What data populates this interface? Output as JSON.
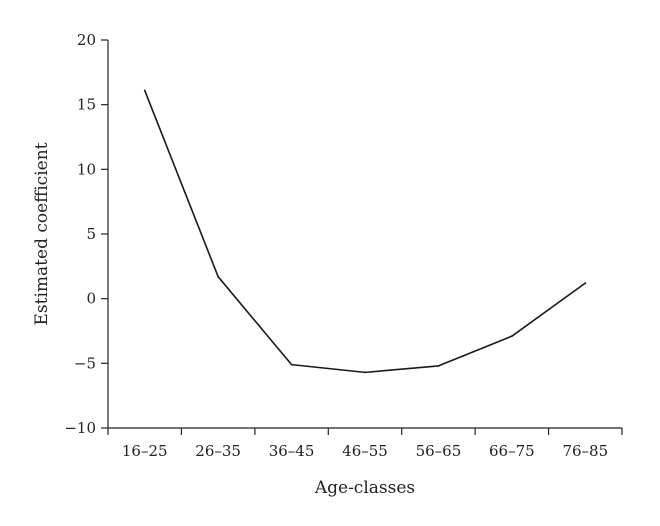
{
  "chart_data": {
    "type": "line",
    "title": "",
    "xlabel": "Age-classes",
    "ylabel": "Estimated coefficient",
    "categories": [
      "16–25",
      "26–35",
      "36–45",
      "46–55",
      "56–65",
      "66–75",
      "76–85"
    ],
    "series": [
      {
        "values": [
          16.1,
          1.7,
          -5.1,
          -5.7,
          -5.2,
          -2.9,
          1.2
        ]
      }
    ],
    "ylim": [
      -10,
      20
    ],
    "yticks": [
      -10,
      -5,
      0,
      5,
      10,
      15,
      20
    ],
    "ytick_labels": [
      "−10",
      "−5",
      "0",
      "5",
      "10",
      "15",
      "20"
    ],
    "grid": false,
    "legend": "none",
    "line_color": "#1a1a1a"
  }
}
